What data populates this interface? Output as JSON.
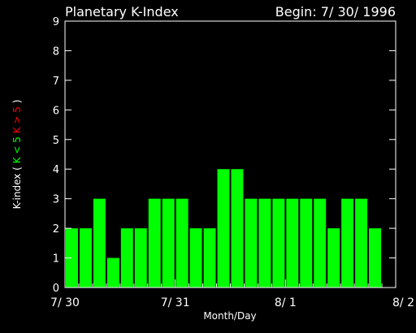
{
  "chart_data": {
    "type": "bar",
    "title": "Planetary K-Index",
    "subtitle": "Begin: 7/ 30/ 1996",
    "xlabel": "Month/Day",
    "ylabel": {
      "prefix": "K-index",
      "open": "(",
      "low_label": "K < 5",
      "high_label": "K > 5",
      "close": ")"
    },
    "ylim": [
      0,
      9
    ],
    "yticks": [
      "0",
      "1",
      "2",
      "3",
      "4",
      "5",
      "6",
      "7",
      "8",
      "9"
    ],
    "xticks": [
      "7/ 30",
      "7/ 31",
      "8/ 1",
      "8/ 2"
    ],
    "values": [
      2,
      2,
      3,
      1,
      2,
      2,
      3,
      3,
      3,
      2,
      2,
      4,
      4,
      3,
      3,
      3,
      3,
      3,
      3,
      2,
      3,
      3,
      2
    ],
    "bars_per_day": 8,
    "colors": {
      "background": "#000000",
      "axis": "#ffffff",
      "bar_low": "#00ff00",
      "bar_high": "#ff0000",
      "label_low": "#00ff00",
      "label_high": "#ff0000"
    }
  }
}
